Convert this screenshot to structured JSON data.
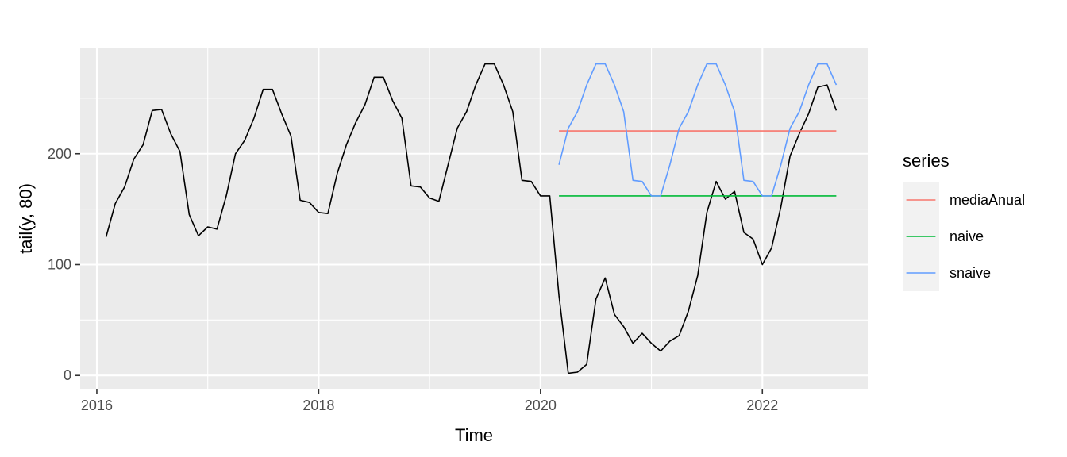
{
  "chart_data": {
    "type": "line",
    "xlabel": "Time",
    "ylabel": "tail(y, 80)",
    "xlim": [
      2015.85,
      2022.95
    ],
    "ylim": [
      -12,
      295
    ],
    "x_ticks": [
      2016,
      2018,
      2020,
      2022
    ],
    "x_tick_labels": [
      "2016",
      "2018",
      "2020",
      "2022"
    ],
    "y_ticks": [
      0,
      100,
      200
    ],
    "y_tick_labels": [
      "0",
      "100",
      "200"
    ],
    "grid": true,
    "legend": {
      "title": "series",
      "position": "right",
      "entries": [
        {
          "label": "mediaAnual",
          "color": "#F8766D"
        },
        {
          "label": "naive",
          "color": "#00BA38"
        },
        {
          "label": "snaive",
          "color": "#619CFF"
        }
      ]
    },
    "observed": {
      "color": "#000000",
      "start": [
        2016,
        2
      ],
      "frequency": 12,
      "values": [
        125,
        155,
        170,
        195,
        208,
        239,
        240,
        218,
        202,
        145,
        126,
        134,
        132,
        162,
        200,
        212,
        232,
        258,
        258,
        236,
        216,
        158,
        156,
        147,
        146,
        182,
        208,
        228,
        244,
        269,
        269,
        248,
        232,
        171,
        170,
        160,
        157,
        190,
        223,
        238,
        262,
        281,
        281,
        262,
        238,
        176,
        175,
        162,
        162,
        72,
        2,
        3,
        10,
        69,
        88,
        55,
        44,
        29,
        38,
        29,
        22,
        31,
        36,
        58,
        90,
        147,
        175,
        159,
        166,
        129,
        123,
        100,
        115,
        152,
        198,
        218,
        236,
        260,
        262,
        239
      ]
    },
    "series": [
      {
        "name": "mediaAnual",
        "color": "#F8766D",
        "start": [
          2020,
          3
        ],
        "frequency": 12,
        "values": [
          220.5,
          220.5,
          220.5,
          220.5,
          220.5,
          220.5,
          220.5,
          220.5,
          220.5,
          220.5,
          220.5,
          220.5,
          220.5,
          220.5,
          220.5,
          220.5,
          220.5,
          220.5,
          220.5,
          220.5,
          220.5,
          220.5,
          220.5,
          220.5,
          220.5,
          220.5,
          220.5,
          220.5,
          220.5,
          220.5,
          220.5
        ]
      },
      {
        "name": "naive",
        "color": "#00BA38",
        "start": [
          2020,
          3
        ],
        "frequency": 12,
        "values": [
          162,
          162,
          162,
          162,
          162,
          162,
          162,
          162,
          162,
          162,
          162,
          162,
          162,
          162,
          162,
          162,
          162,
          162,
          162,
          162,
          162,
          162,
          162,
          162,
          162,
          162,
          162,
          162,
          162,
          162,
          162
        ]
      },
      {
        "name": "snaive",
        "color": "#619CFF",
        "start": [
          2020,
          3
        ],
        "frequency": 12,
        "values": [
          190,
          223,
          238,
          262,
          281,
          281,
          262,
          238,
          176,
          175,
          162,
          162,
          190,
          223,
          238,
          262,
          281,
          281,
          262,
          238,
          176,
          175,
          162,
          162,
          190,
          223,
          238,
          262,
          281,
          281,
          262
        ]
      }
    ]
  }
}
